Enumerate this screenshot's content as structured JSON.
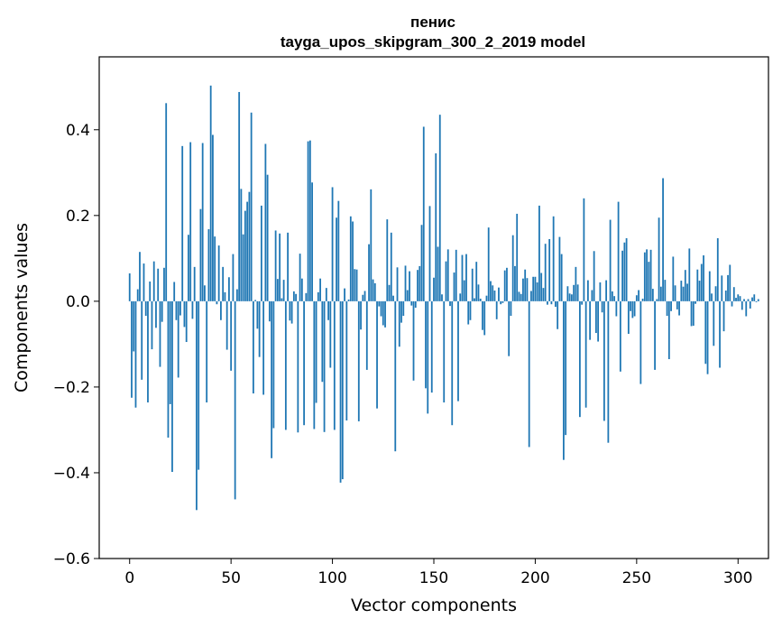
{
  "chart_data": {
    "type": "bar",
    "title_line1": "пенис",
    "title_line2": "tayga_upos_skipgram_300_2_2019 model",
    "xlabel": "Vector components",
    "ylabel": "Components values",
    "xlim": [
      -15,
      315
    ],
    "ylim": [
      -0.6,
      0.57
    ],
    "xticks": [
      0,
      50,
      100,
      150,
      200,
      250,
      300
    ],
    "xtick_labels": [
      "0",
      "50",
      "100",
      "150",
      "200",
      "250",
      "300"
    ],
    "yticks": [
      -0.6,
      -0.4,
      -0.2,
      0.0,
      0.2,
      0.4
    ],
    "ytick_labels": [
      "−0.6",
      "−0.4",
      "−0.2",
      "0.0",
      "0.2",
      "0.4"
    ],
    "bar_color": "#1f77b4",
    "values": [
      0.065,
      -0.225,
      -0.117,
      -0.248,
      0.028,
      0.115,
      -0.183,
      0.088,
      -0.034,
      -0.236,
      0.046,
      -0.112,
      0.093,
      -0.062,
      0.076,
      -0.153,
      -0.048,
      0.078,
      0.462,
      -0.318,
      -0.24,
      -0.398,
      0.045,
      -0.044,
      -0.178,
      -0.033,
      0.362,
      -0.06,
      -0.095,
      0.155,
      0.371,
      -0.041,
      0.08,
      -0.487,
      -0.393,
      0.215,
      0.369,
      0.037,
      -0.236,
      0.168,
      0.503,
      0.388,
      0.151,
      -0.007,
      0.13,
      -0.044,
      0.08,
      0.021,
      -0.113,
      0.056,
      -0.162,
      0.11,
      -0.462,
      0.028,
      0.488,
      0.262,
      0.156,
      0.211,
      0.232,
      0.255,
      0.44,
      -0.215,
      0.003,
      -0.064,
      -0.13,
      0.223,
      -0.218,
      0.367,
      0.295,
      -0.047,
      -0.366,
      -0.296,
      0.165,
      0.052,
      0.158,
      0.007,
      0.05,
      -0.3,
      0.16,
      -0.045,
      -0.052,
      0.023,
      0.017,
      -0.306,
      0.111,
      0.053,
      -0.289,
      0.019,
      0.373,
      0.375,
      0.277,
      -0.298,
      -0.237,
      0.021,
      0.053,
      -0.188,
      -0.305,
      0.031,
      -0.044,
      -0.155,
      0.266,
      -0.3,
      0.195,
      0.234,
      -0.423,
      -0.415,
      0.03,
      -0.278,
      0.004,
      0.198,
      0.186,
      0.075,
      0.074,
      -0.28,
      -0.066,
      0.015,
      0.024,
      -0.16,
      0.133,
      0.261,
      0.051,
      0.042,
      -0.25,
      -0.012,
      -0.035,
      -0.056,
      -0.061,
      0.191,
      0.038,
      0.16,
      0.013,
      -0.35,
      0.079,
      -0.106,
      -0.05,
      -0.034,
      0.083,
      0.026,
      0.07,
      -0.01,
      -0.185,
      -0.015,
      0.073,
      0.082,
      0.178,
      0.407,
      -0.203,
      -0.262,
      0.222,
      -0.213,
      0.055,
      0.345,
      0.127,
      0.435,
      0.016,
      -0.236,
      0.093,
      0.121,
      -0.011,
      -0.289,
      0.067,
      0.12,
      -0.233,
      0.018,
      0.108,
      0.049,
      0.11,
      -0.054,
      -0.044,
      0.076,
      0.007,
      0.092,
      0.039,
      0.006,
      -0.067,
      -0.079,
      0.013,
      0.172,
      0.047,
      0.037,
      0.025,
      -0.042,
      0.032,
      -0.007,
      -0.004,
      0.072,
      0.078,
      -0.128,
      -0.034,
      0.154,
      0.082,
      0.204,
      0.022,
      0.017,
      0.053,
      0.074,
      0.054,
      -0.34,
      0.024,
      0.057,
      0.057,
      0.044,
      0.223,
      0.066,
      0.031,
      0.134,
      -0.008,
      0.145,
      -0.007,
      0.198,
      -0.013,
      -0.065,
      0.15,
      0.11,
      -0.37,
      -0.312,
      0.035,
      0.018,
      0.016,
      0.038,
      0.08,
      0.039,
      -0.27,
      -0.008,
      0.24,
      -0.248,
      0.049,
      -0.09,
      0.026,
      0.117,
      -0.074,
      -0.094,
      0.044,
      -0.026,
      -0.279,
      0.049,
      -0.33,
      0.19,
      0.023,
      0.012,
      -0.035,
      0.232,
      -0.164,
      0.118,
      0.137,
      0.147,
      -0.076,
      -0.023,
      -0.039,
      -0.035,
      0.014,
      0.026,
      -0.193,
      0.006,
      0.114,
      0.121,
      0.092,
      0.12,
      0.029,
      -0.16,
      0.005,
      0.195,
      0.034,
      0.287,
      0.05,
      -0.034,
      -0.135,
      -0.023,
      0.104,
      0.037,
      -0.019,
      -0.033,
      0.048,
      0.034,
      0.073,
      0.041,
      0.123,
      -0.058,
      -0.057,
      -0.006,
      0.074,
      0.048,
      0.087,
      0.107,
      -0.146,
      -0.17,
      0.07,
      0.018,
      -0.104,
      0.035,
      0.147,
      -0.155,
      0.06,
      -0.07,
      0.025,
      0.061,
      0.085,
      -0.012,
      0.033,
      0.008,
      0.016,
      0.012,
      -0.02,
      0.005,
      -0.035,
      0.005,
      -0.017,
      0.009,
      0.016,
      -0.002,
      0.005
    ]
  }
}
